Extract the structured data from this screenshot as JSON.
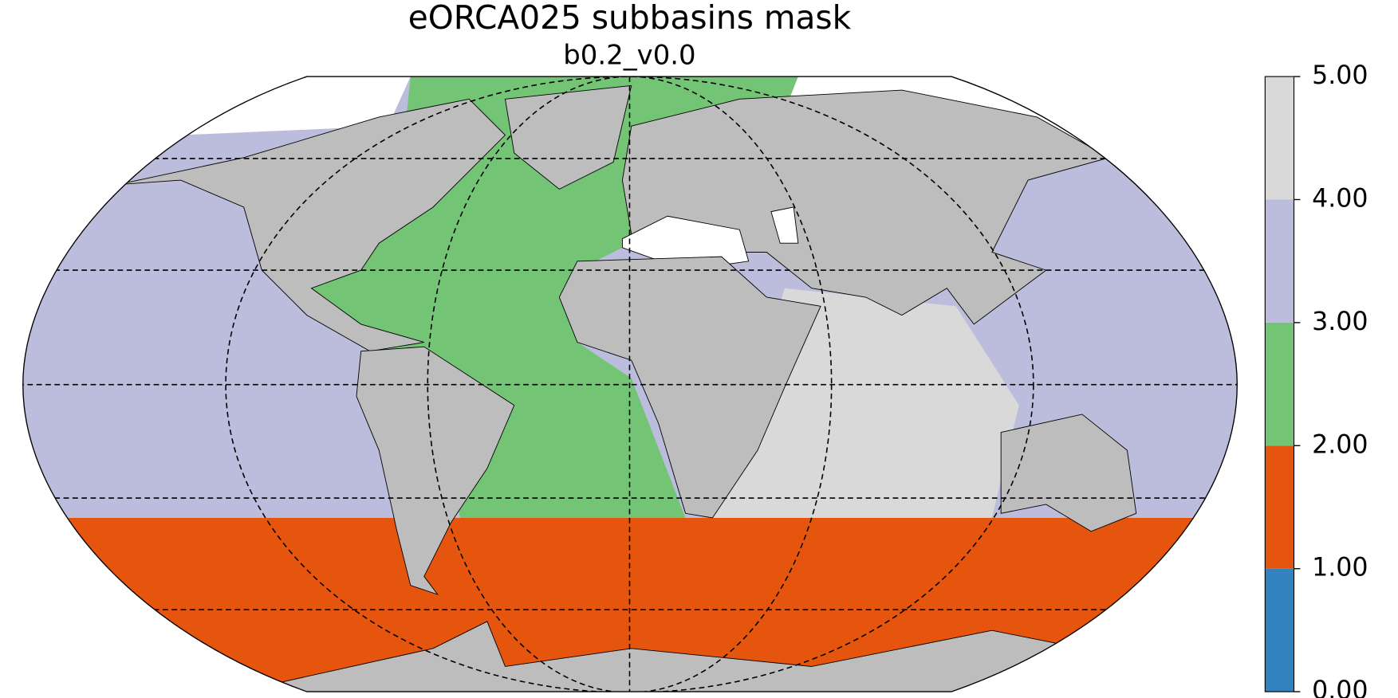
{
  "title": "eORCA025 subbasins mask",
  "subtitle": "b0.2_v0.0",
  "colorbar": {
    "lim": [
      0,
      5
    ],
    "ticks": [
      {
        "value": 0,
        "label": "0.00"
      },
      {
        "value": 1,
        "label": "1.00"
      },
      {
        "value": 2,
        "label": "2.00"
      },
      {
        "value": 3,
        "label": "3.00"
      },
      {
        "value": 4,
        "label": "4.00"
      },
      {
        "value": 5,
        "label": "5.00"
      }
    ],
    "colors": [
      "#3182bd",
      "#e6550d",
      "#74c476",
      "#bcbddc",
      "#d9d9d9"
    ]
  }
}
